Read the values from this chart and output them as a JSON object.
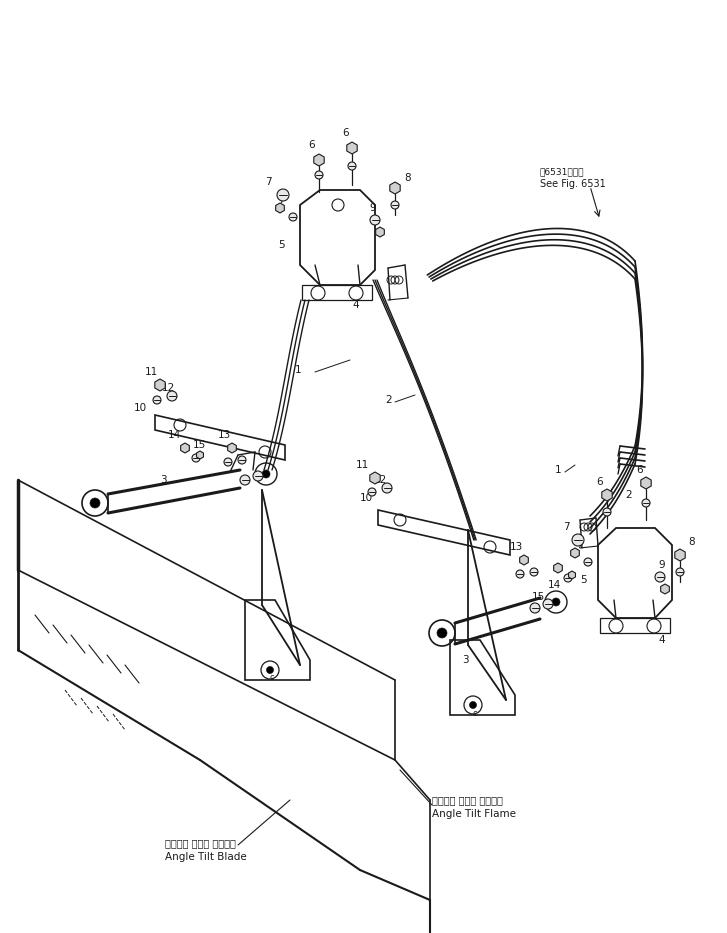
{
  "bg_color": "#ffffff",
  "line_color": "#1a1a1a",
  "fig_width": 7.27,
  "fig_height": 9.33,
  "dpi": 100,
  "labels": {
    "angle_tilt_blade_jp": "アングル チルト ブレード",
    "angle_tilt_blade_en": "Angle Tilt Blade",
    "angle_tilt_flame_jp": "アングル チルト フレーム",
    "angle_tilt_flame_en": "Angle Tilt Flame",
    "see_fig_jp": "第6531図参照",
    "see_fig_en": "See Fig. 6531"
  }
}
